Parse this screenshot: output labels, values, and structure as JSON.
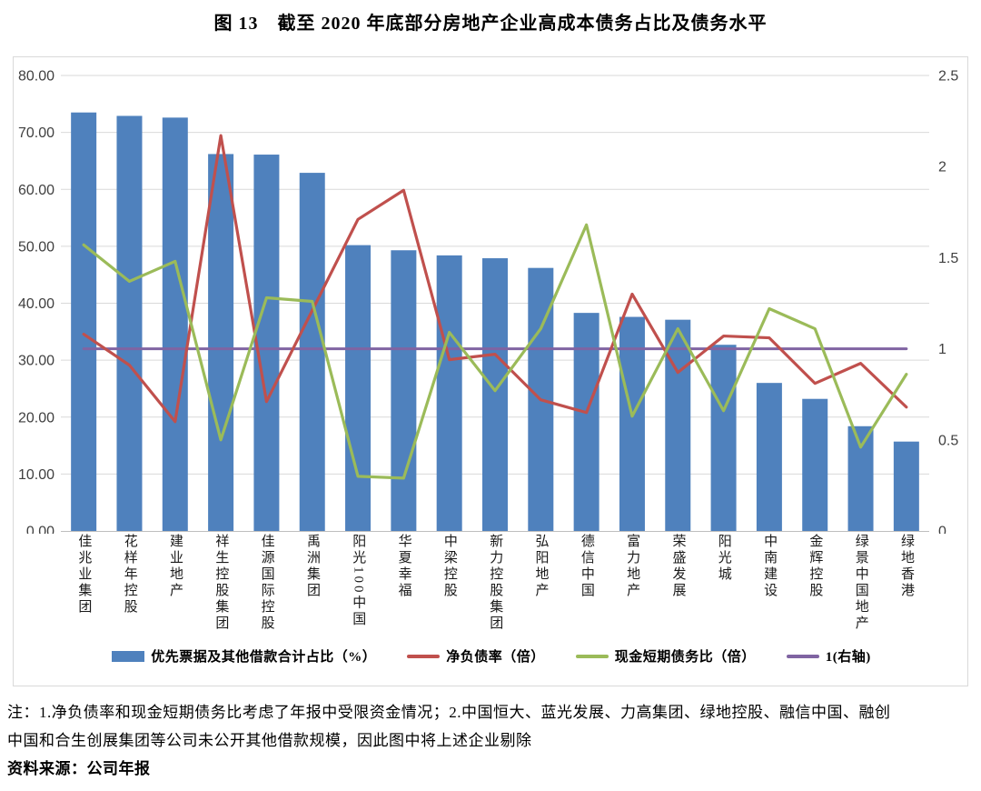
{
  "title": "图 13　截至 2020 年底部分房地产企业高成本债务占比及债务水平",
  "chart_data": {
    "type": "bar",
    "combo": "bar + line, dual axis",
    "grid": true,
    "legend_position": "bottom",
    "categories": [
      "佳兆业集团",
      "花样年控股",
      "建业地产",
      "祥生控股集团",
      "佳源国际控股",
      "禹洲集团",
      "阳光100中国",
      "华夏幸福",
      "中梁控股",
      "新力控股集团",
      "弘阳地产",
      "德信中国",
      "富力地产",
      "荣盛发展",
      "阳光城",
      "中南建设",
      "金辉控股",
      "绿景中国地产",
      "绿地香港"
    ],
    "series": [
      {
        "name": "优先票据及其他借款合计占比（%）",
        "type": "bar",
        "axis": "left",
        "color": "#4F81BD",
        "values": [
          73.5,
          72.9,
          72.6,
          66.2,
          66.1,
          62.9,
          50.2,
          49.3,
          48.4,
          47.9,
          46.2,
          38.3,
          37.6,
          37.1,
          32.7,
          26.0,
          23.2,
          18.4,
          15.7
        ]
      },
      {
        "name": "净负债率（倍）",
        "type": "line",
        "axis": "right",
        "color": "#C0504D",
        "values": [
          1.08,
          0.91,
          0.6,
          2.17,
          0.71,
          1.21,
          1.71,
          1.87,
          0.94,
          0.97,
          0.72,
          0.65,
          1.3,
          0.87,
          1.07,
          1.06,
          0.81,
          0.92,
          0.68
        ]
      },
      {
        "name": "现金短期债务比（倍）",
        "type": "line",
        "axis": "right",
        "color": "#9BBB59",
        "values": [
          1.57,
          1.37,
          1.48,
          0.5,
          1.28,
          1.26,
          0.3,
          0.29,
          1.09,
          0.77,
          1.11,
          1.68,
          0.63,
          1.11,
          0.66,
          1.22,
          1.11,
          0.46,
          0.86
        ]
      },
      {
        "name": "1(右轴)",
        "type": "line",
        "axis": "right",
        "color": "#8064A2",
        "values": [
          1,
          1,
          1,
          1,
          1,
          1,
          1,
          1,
          1,
          1,
          1,
          1,
          1,
          1,
          1,
          1,
          1,
          1,
          1
        ]
      }
    ],
    "left_axis": {
      "min": 0,
      "max": 80,
      "step": 10,
      "labels": [
        "80.00",
        "70.00",
        "60.00",
        "50.00",
        "40.00",
        "30.00",
        "20.00",
        "10.00",
        "0.00"
      ]
    },
    "right_axis": {
      "min": 0,
      "max": 2.5,
      "step": 0.5,
      "labels": [
        "2.5",
        "2",
        "1.5",
        "1",
        "0.5",
        "0"
      ]
    },
    "colors": {
      "gridline": "#D9D9D9",
      "axis_line": "#BFBFBF",
      "tick_text": "#404040"
    }
  },
  "notes": {
    "line1": "注：1.净负债率和现金短期债务比考虑了年报中受限资金情况；2.中国恒大、蓝光发展、力高集团、绿地控股、融信中国、融创",
    "line2": "中国和合生创展集团等公司未公开其他借款规模，因此图中将上述企业剔除",
    "source": "资料来源：公司年报"
  }
}
